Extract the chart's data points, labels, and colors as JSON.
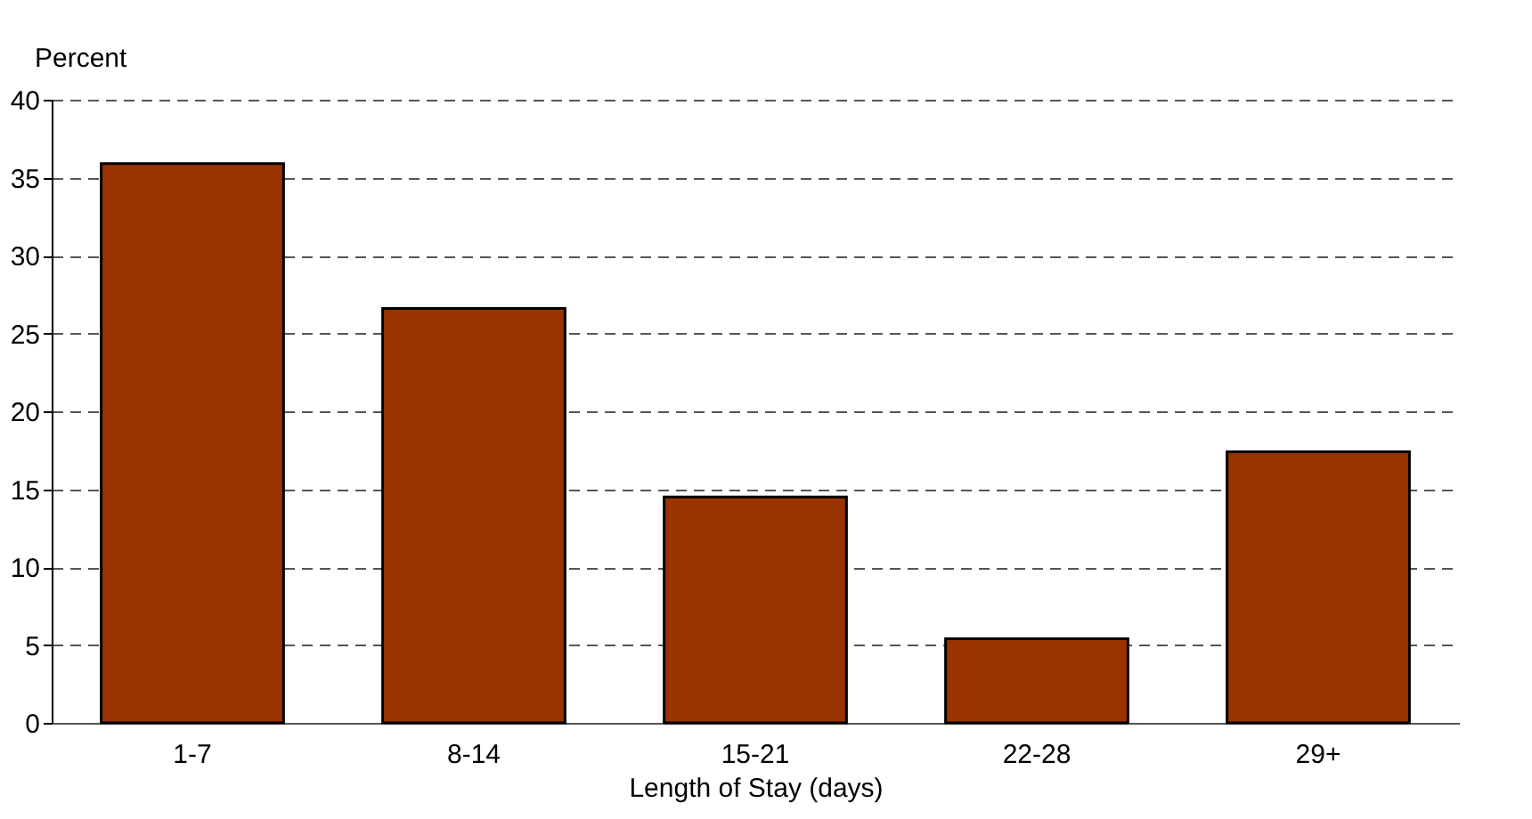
{
  "chart_data": {
    "type": "bar",
    "xlabel": "Length of Stay (days)",
    "ylabel": "Percent",
    "categories": [
      "1-7",
      "8-14",
      "15-21",
      "22-28",
      "29+"
    ],
    "values": [
      35.9,
      26.6,
      14.5,
      5.4,
      17.4
    ],
    "color": "#993300",
    "ylim": [
      0,
      40
    ],
    "yticks": [
      0,
      5,
      10,
      15,
      20,
      25,
      30,
      35,
      40
    ],
    "grid": "y",
    "line_style": "dashed"
  }
}
